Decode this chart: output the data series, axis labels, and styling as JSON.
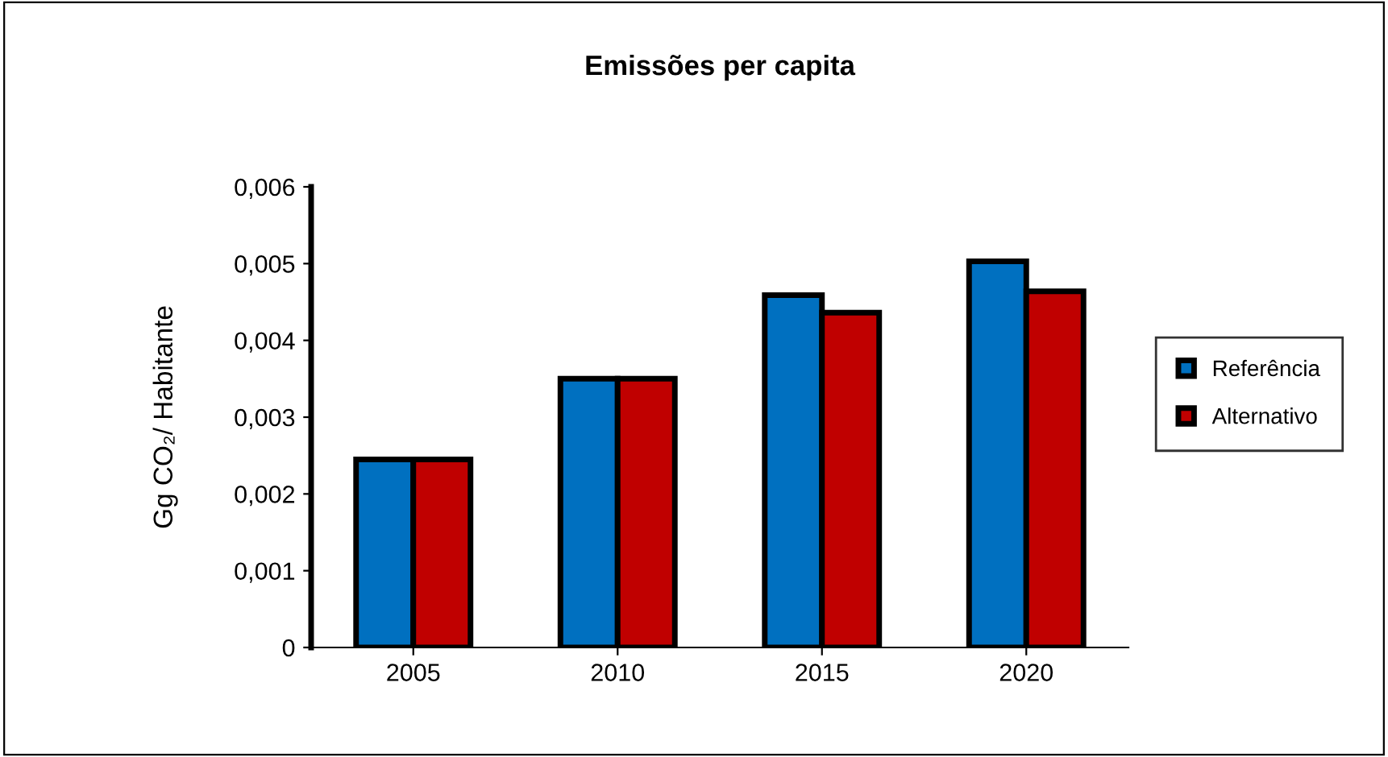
{
  "chart_data": {
    "type": "bar",
    "title": "Emissões per capita",
    "ylabel": "Gg CO₂/ Habitante",
    "categories": [
      "2005",
      "2010",
      "2015",
      "2020"
    ],
    "series": [
      {
        "name": "Referência",
        "color": "#0070c0",
        "values": [
          0.00245,
          0.0035,
          0.00459,
          0.00503
        ]
      },
      {
        "name": "Alternativo",
        "color": "#c00000",
        "values": [
          0.00245,
          0.0035,
          0.00436,
          0.00464
        ]
      }
    ],
    "ylim": [
      0,
      0.006
    ],
    "yticks": [
      {
        "value": 0,
        "label": "0"
      },
      {
        "value": 0.001,
        "label": "0,001"
      },
      {
        "value": 0.002,
        "label": "0,002"
      },
      {
        "value": 0.003,
        "label": "0,003"
      },
      {
        "value": 0.004,
        "label": "0,004"
      },
      {
        "value": 0.005,
        "label": "0,005"
      },
      {
        "value": 0.006,
        "label": "0,006"
      }
    ],
    "grid": false,
    "legend": "right"
  }
}
